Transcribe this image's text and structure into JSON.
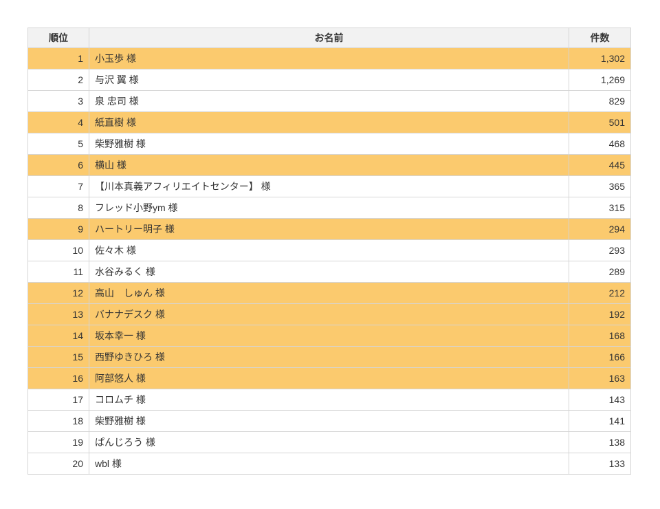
{
  "colors": {
    "highlight_row_bg": "#fbca6e",
    "header_bg": "#f2f2f2",
    "border": "#d5d5d5",
    "text": "#333333",
    "page_bg": "#ffffff"
  },
  "table": {
    "columns": [
      "順位",
      "お名前",
      "件数"
    ],
    "rows": [
      {
        "rank": "1",
        "name": "小玉歩 様",
        "count": "1,302",
        "highlighted": true
      },
      {
        "rank": "2",
        "name": "与沢 翼 様",
        "count": "1,269",
        "highlighted": false
      },
      {
        "rank": "3",
        "name": "泉 忠司 様",
        "count": "829",
        "highlighted": false
      },
      {
        "rank": "4",
        "name": "紙直樹 様",
        "count": "501",
        "highlighted": true
      },
      {
        "rank": "5",
        "name": "柴野雅樹 様",
        "count": "468",
        "highlighted": false
      },
      {
        "rank": "6",
        "name": "横山 様",
        "count": "445",
        "highlighted": true
      },
      {
        "rank": "7",
        "name": "【川本真義アフィリエイトセンター】 様",
        "count": "365",
        "highlighted": false
      },
      {
        "rank": "8",
        "name": "フレッド小野ym 様",
        "count": "315",
        "highlighted": false
      },
      {
        "rank": "9",
        "name": "ハートリー明子 様",
        "count": "294",
        "highlighted": true
      },
      {
        "rank": "10",
        "name": "佐々木 様",
        "count": "293",
        "highlighted": false
      },
      {
        "rank": "11",
        "name": "水谷みるく 様",
        "count": "289",
        "highlighted": false
      },
      {
        "rank": "12",
        "name": "高山　しゅん 様",
        "count": "212",
        "highlighted": true
      },
      {
        "rank": "13",
        "name": "バナナデスク 様",
        "count": "192",
        "highlighted": true
      },
      {
        "rank": "14",
        "name": "坂本幸一 様",
        "count": "168",
        "highlighted": true
      },
      {
        "rank": "15",
        "name": "西野ゆきひろ 様",
        "count": "166",
        "highlighted": true
      },
      {
        "rank": "16",
        "name": "阿部悠人 様",
        "count": "163",
        "highlighted": true
      },
      {
        "rank": "17",
        "name": "コロムチ 様",
        "count": "143",
        "highlighted": false
      },
      {
        "rank": "18",
        "name": "柴野雅樹 様",
        "count": "141",
        "highlighted": false
      },
      {
        "rank": "19",
        "name": "ぱんじろう 様",
        "count": "138",
        "highlighted": false
      },
      {
        "rank": "20",
        "name": "wbl 様",
        "count": "133",
        "highlighted": false
      }
    ]
  }
}
